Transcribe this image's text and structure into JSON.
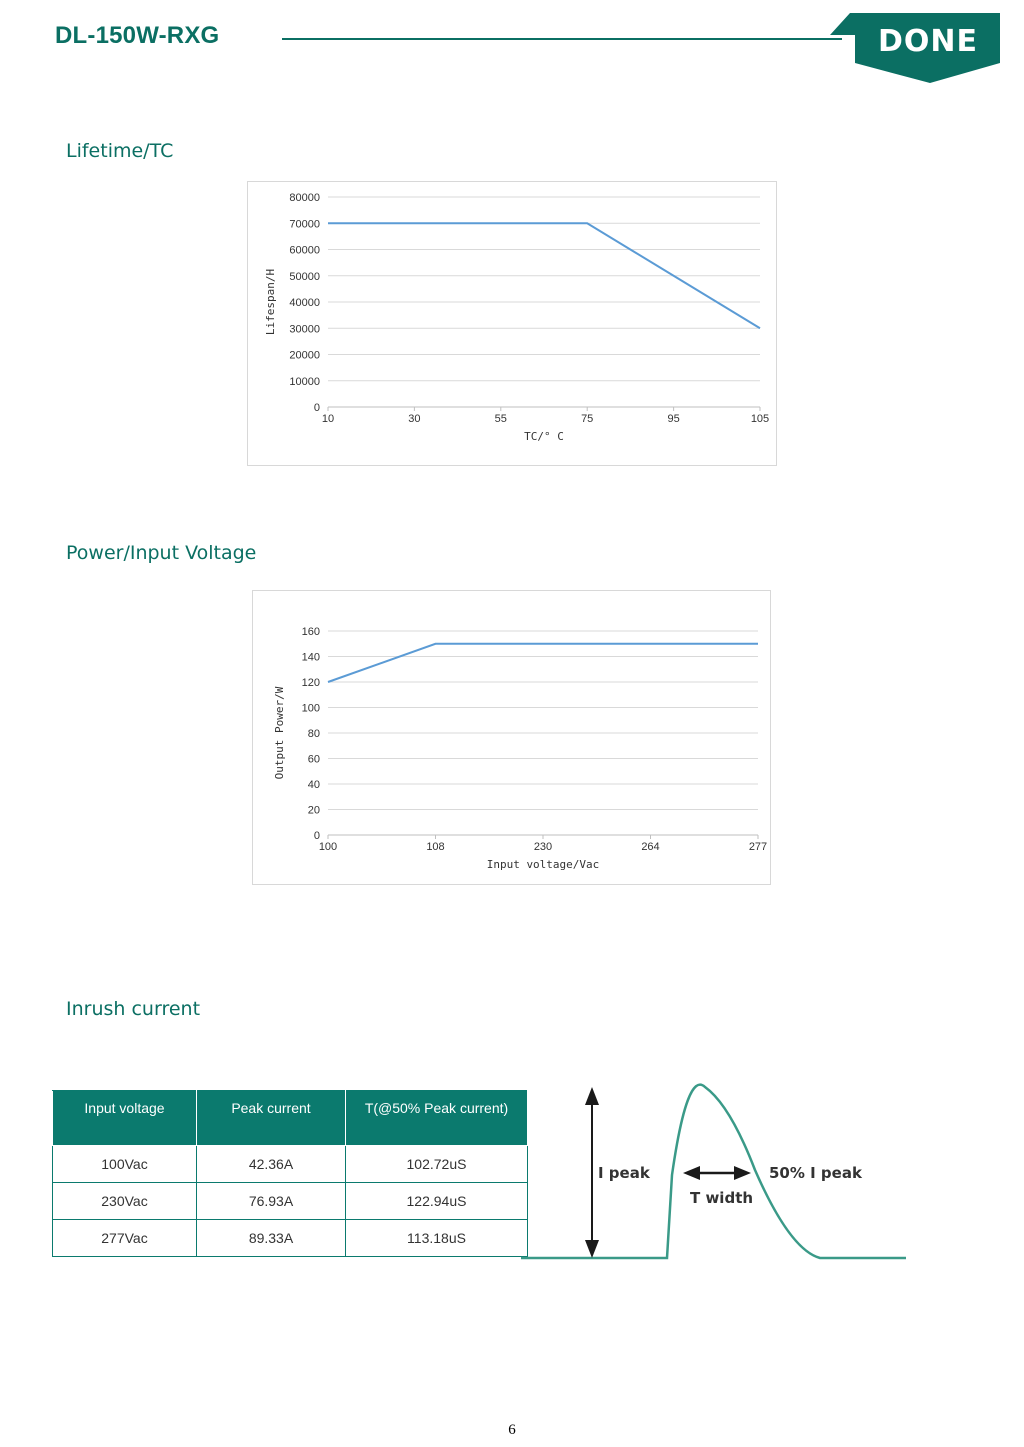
{
  "header": {
    "product": "DL-150W-RXG",
    "brand": "DONE"
  },
  "sections": {
    "lifetime": "Lifetime/TC",
    "power": "Power/Input Voltage",
    "inrush": "Inrush current"
  },
  "chart_data": [
    {
      "type": "line",
      "ylabel": "Lifespan/H",
      "xlabel": "TC/° C",
      "x": [
        "10",
        "30",
        "55",
        "75",
        "95",
        "105"
      ],
      "y_ticks": [
        "0",
        "10000",
        "20000",
        "30000",
        "40000",
        "50000",
        "60000",
        "70000",
        "80000"
      ],
      "ylim": [
        0,
        80000
      ],
      "series": [
        {
          "values": [
            70000,
            70000,
            70000,
            70000,
            50000,
            30000
          ]
        }
      ],
      "grid": true,
      "color": "#5b9bd5"
    },
    {
      "type": "line",
      "ylabel": "Output Power/W",
      "xlabel": "Input voltage/Vac",
      "x": [
        "100",
        "108",
        "230",
        "264",
        "277"
      ],
      "y_ticks": [
        "0",
        "20",
        "40",
        "60",
        "80",
        "100",
        "120",
        "140",
        "160"
      ],
      "ylim": [
        0,
        160
      ],
      "series": [
        {
          "values": [
            120,
            150,
            150,
            150,
            150
          ]
        }
      ],
      "grid": true,
      "color": "#5b9bd5"
    }
  ],
  "inrush_table": {
    "headers": [
      "Input voltage",
      "Peak current",
      "T(@50% Peak current)"
    ],
    "rows": [
      [
        "100Vac",
        "42.36A",
        "102.72uS"
      ],
      [
        "230Vac",
        "76.93A",
        "122.94uS"
      ],
      [
        "277Vac",
        "89.33A",
        "113.18uS"
      ]
    ]
  },
  "waveform": {
    "i_peak": "I peak",
    "t_width": "T width",
    "half_peak": "50% I peak",
    "color": "#3a9a88"
  },
  "page_number": "6"
}
